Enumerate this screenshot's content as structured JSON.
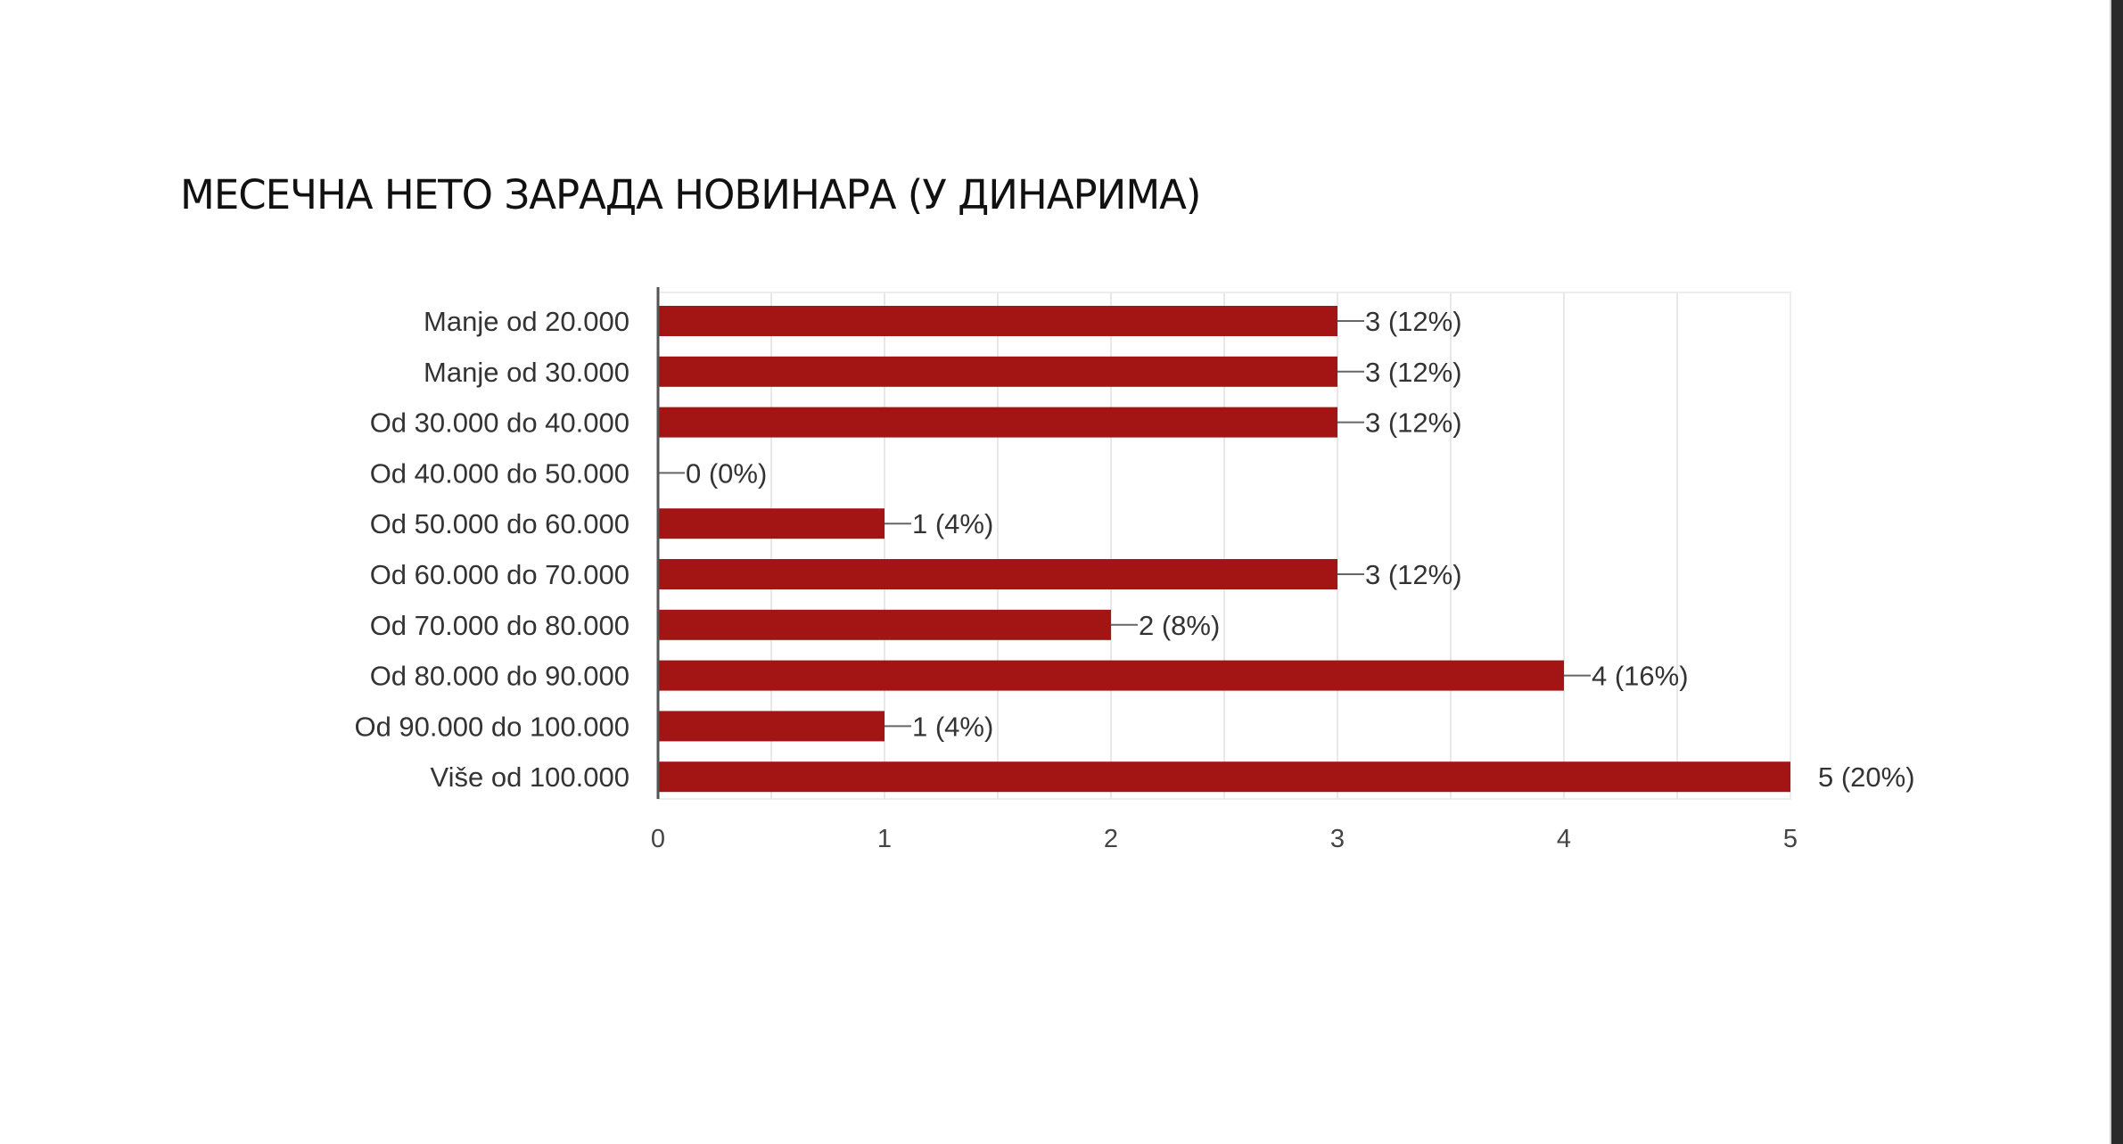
{
  "chart_data": {
    "type": "bar",
    "orientation": "horizontal",
    "title": "МЕСЕЧНА НЕТО ЗАРАДА НОВИНАРА (У ДИНАРИМА)",
    "categories": [
      "Manje od 20.000",
      "Manje od 30.000",
      "Od 30.000 do 40.000",
      "Od 40.000 do 50.000",
      "Od 50.000 do 60.000",
      "Od 60.000 do 70.000",
      "Od 70.000 do 80.000",
      "Od 80.000 do 90.000",
      "Od 90.000 do 100.000",
      "Više od 100.000"
    ],
    "values": [
      3,
      3,
      3,
      0,
      1,
      3,
      2,
      4,
      1,
      5
    ],
    "data_labels": [
      "3 (12%)",
      "3 (12%)",
      "3 (12%)",
      "0 (0%)",
      "1 (4%)",
      "3 (12%)",
      "2 (8%)",
      "4 (16%)",
      "1 (4%)",
      "5 (20%)"
    ],
    "xlim": [
      0,
      5
    ],
    "xticks": [
      "0",
      "1",
      "2",
      "3",
      "4",
      "5"
    ],
    "xlabel": "",
    "ylabel": "",
    "grid": true,
    "bar_color": "#a31414"
  }
}
